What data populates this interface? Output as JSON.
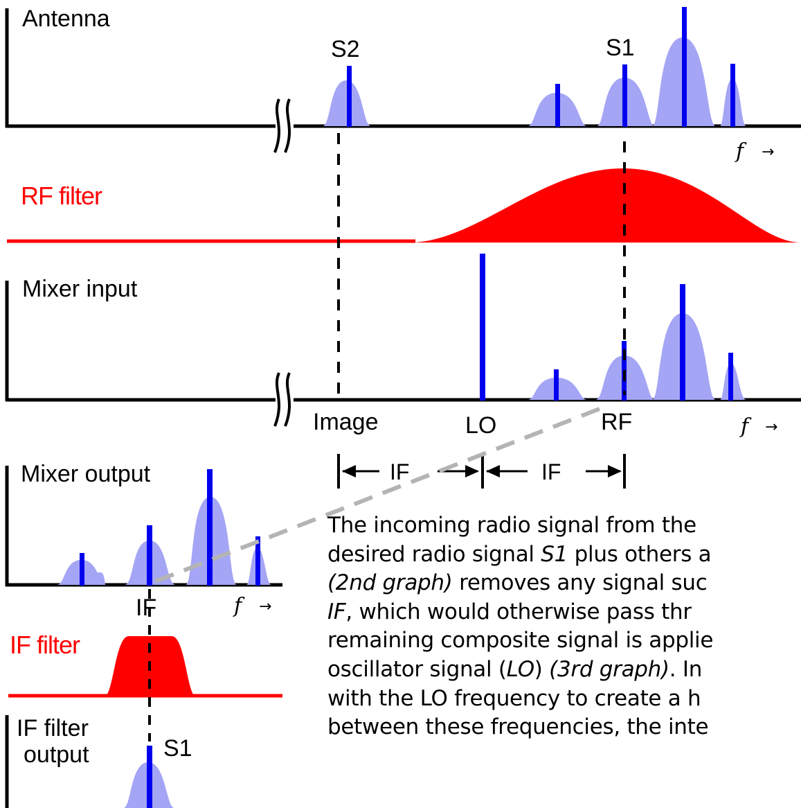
{
  "panels": {
    "antenna": "Antenna",
    "rf_filter": "RF filter",
    "mixer_input": "Mixer input",
    "mixer_output": "Mixer output",
    "if_filter": "IF filter",
    "if_filter_output_line1": "IF filter",
    "if_filter_output_line2": "output"
  },
  "signals": {
    "s1": "S1",
    "s2": "S2",
    "s1_output": "S1"
  },
  "frequency_labels": {
    "image": "Image",
    "lo": "LO",
    "rf": "RF",
    "if_top": "IF",
    "if_left": "IF",
    "if_right": "IF"
  },
  "axis": {
    "f": "f",
    "arrow": "→"
  },
  "caption": {
    "line1": "The incoming radio signal from the",
    "line2_a": "desired radio signal ",
    "line2_b": "S1",
    "line2_c": " plus others a",
    "line3_a": "(2nd graph)",
    "line3_b": " removes any signal suc",
    "line4_a": " IF",
    "line4_b": ", which would otherwise pass thr",
    "line5": "remaining composite signal is applie",
    "line6_a": "oscillator signal (",
    "line6_b": "LO",
    "line6_c": ") ",
    "line6_d": "(3rd graph)",
    "line6_e": ". In",
    "line7": "with the LO frequency to create a h",
    "line8": "between these frequencies, the inte"
  },
  "colors": {
    "signal_fill": "#a5a5f5",
    "signal_bar": "#0000ee",
    "filter_red": "#ff0000",
    "axis": "#000000",
    "guide_dashed": "#000000",
    "guide_gray": "#b4b4b4"
  }
}
